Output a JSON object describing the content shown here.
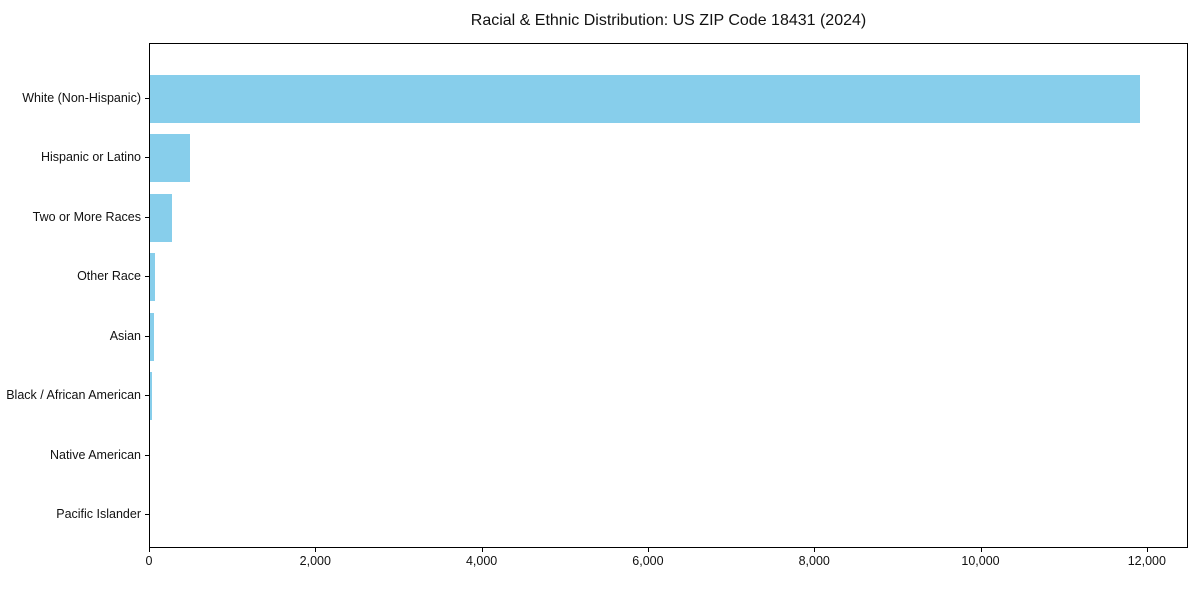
{
  "chart_data": {
    "type": "bar",
    "orientation": "horizontal",
    "title": "Racial & Ethnic Distribution: US ZIP Code 18431 (2024)",
    "xlabel": "",
    "ylabel": "",
    "categories": [
      "White (Non-Hispanic)",
      "Hispanic or Latino",
      "Two or More Races",
      "Other Race",
      "Asian",
      "Black / African American",
      "Native American",
      "Pacific Islander"
    ],
    "values": [
      11900,
      480,
      265,
      60,
      45,
      30,
      0,
      0
    ],
    "xlim": [
      0,
      12495
    ],
    "xticks": [
      {
        "value": 0,
        "label": "0"
      },
      {
        "value": 2000,
        "label": "2,000"
      },
      {
        "value": 4000,
        "label": "4,000"
      },
      {
        "value": 6000,
        "label": "6,000"
      },
      {
        "value": 8000,
        "label": "8,000"
      },
      {
        "value": 10000,
        "label": "10,000"
      },
      {
        "value": 12000,
        "label": "12,000"
      }
    ],
    "bar_color": "#87CEEB",
    "spine_color": "#000000",
    "text_color": "#111111",
    "background_color": "#ffffff",
    "grid": false,
    "legend": null
  }
}
